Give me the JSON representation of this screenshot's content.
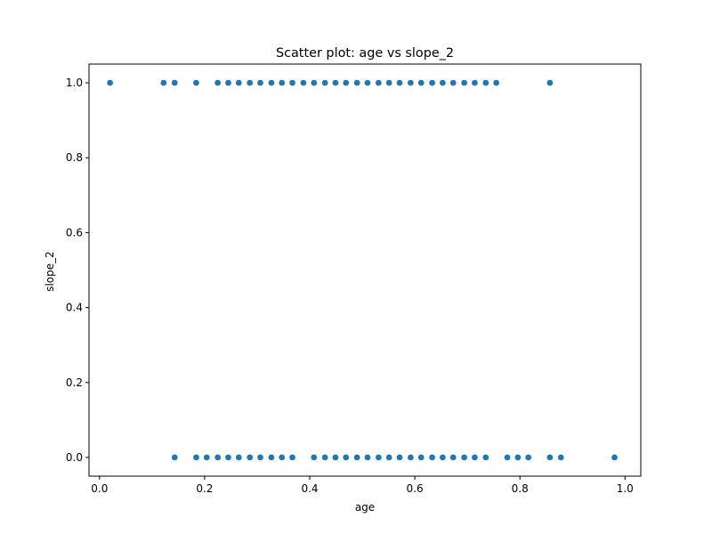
{
  "chart_data": {
    "type": "scatter",
    "title": "Scatter plot: age vs slope_2",
    "xlabel": "age",
    "ylabel": "slope_2",
    "xlim": [
      -0.02,
      1.03
    ],
    "ylim": [
      -0.05,
      1.05
    ],
    "xticks": [
      0.0,
      0.2,
      0.4,
      0.6,
      0.8,
      1.0
    ],
    "xtick_labels": [
      "0.0",
      "0.2",
      "0.4",
      "0.6",
      "0.8",
      "1.0"
    ],
    "yticks": [
      0.0,
      0.2,
      0.4,
      0.6,
      0.8,
      1.0
    ],
    "ytick_labels": [
      "0.0",
      "0.2",
      "0.4",
      "0.6",
      "0.8",
      "1.0"
    ],
    "grid": false,
    "marker_color": "#1f77b4",
    "series": [
      {
        "points": [
          [
            0.02,
            1
          ],
          [
            0.122,
            1
          ],
          [
            0.143,
            1
          ],
          [
            0.184,
            1
          ],
          [
            0.225,
            1
          ],
          [
            0.245,
            1
          ],
          [
            0.265,
            1
          ],
          [
            0.286,
            1
          ],
          [
            0.306,
            1
          ],
          [
            0.327,
            1
          ],
          [
            0.347,
            1
          ],
          [
            0.367,
            1
          ],
          [
            0.388,
            1
          ],
          [
            0.408,
            1
          ],
          [
            0.429,
            1
          ],
          [
            0.449,
            1
          ],
          [
            0.469,
            1
          ],
          [
            0.49,
            1
          ],
          [
            0.51,
            1
          ],
          [
            0.531,
            1
          ],
          [
            0.551,
            1
          ],
          [
            0.571,
            1
          ],
          [
            0.592,
            1
          ],
          [
            0.612,
            1
          ],
          [
            0.633,
            1
          ],
          [
            0.653,
            1
          ],
          [
            0.673,
            1
          ],
          [
            0.694,
            1
          ],
          [
            0.714,
            1
          ],
          [
            0.735,
            1
          ],
          [
            0.755,
            1
          ],
          [
            0.857,
            1
          ],
          [
            0.143,
            0
          ],
          [
            0.184,
            0
          ],
          [
            0.204,
            0
          ],
          [
            0.225,
            0
          ],
          [
            0.245,
            0
          ],
          [
            0.265,
            0
          ],
          [
            0.286,
            0
          ],
          [
            0.306,
            0
          ],
          [
            0.327,
            0
          ],
          [
            0.347,
            0
          ],
          [
            0.367,
            0
          ],
          [
            0.408,
            0
          ],
          [
            0.429,
            0
          ],
          [
            0.449,
            0
          ],
          [
            0.469,
            0
          ],
          [
            0.49,
            0
          ],
          [
            0.51,
            0
          ],
          [
            0.531,
            0
          ],
          [
            0.551,
            0
          ],
          [
            0.571,
            0
          ],
          [
            0.592,
            0
          ],
          [
            0.612,
            0
          ],
          [
            0.633,
            0
          ],
          [
            0.653,
            0
          ],
          [
            0.673,
            0
          ],
          [
            0.694,
            0
          ],
          [
            0.714,
            0
          ],
          [
            0.735,
            0
          ],
          [
            0.776,
            0
          ],
          [
            0.796,
            0
          ],
          [
            0.816,
            0
          ],
          [
            0.857,
            0
          ],
          [
            0.878,
            0
          ],
          [
            0.98,
            0
          ]
        ]
      }
    ]
  }
}
